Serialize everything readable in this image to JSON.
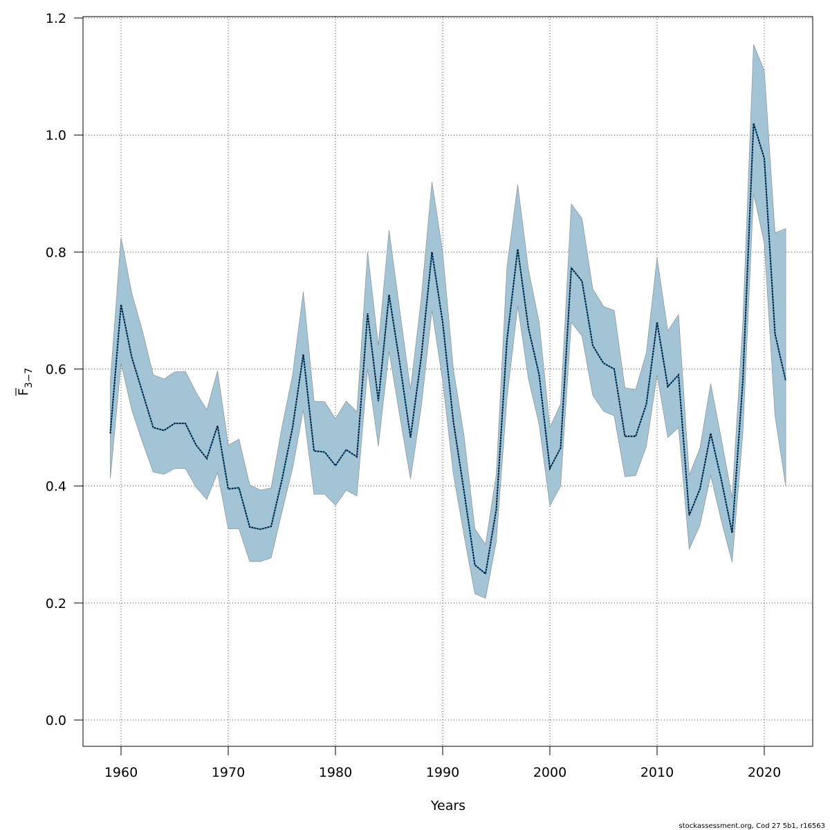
{
  "chart_data": {
    "type": "line",
    "xlabel": "Years",
    "ylabel_main": "F",
    "ylabel_sub": "3−7",
    "xlim": [
      1956.5,
      2024.5
    ],
    "ylim": [
      -0.045,
      1.2
    ],
    "xticks": [
      1960,
      1970,
      1980,
      1990,
      2000,
      2010,
      2020
    ],
    "yticks": [
      "0.0",
      "0.2",
      "0.4",
      "0.6",
      "0.8",
      "1.0",
      "1.2"
    ],
    "grid": true,
    "colors": {
      "band": "#a3c4d5",
      "band_edge": "#8a9aa3",
      "line": "#000000",
      "line_under": "#1a8fcf"
    },
    "x": [
      1959,
      1960,
      1961,
      1962,
      1963,
      1964,
      1965,
      1966,
      1967,
      1968,
      1969,
      1970,
      1971,
      1972,
      1973,
      1974,
      1975,
      1976,
      1977,
      1978,
      1979,
      1980,
      1981,
      1982,
      1983,
      1984,
      1985,
      1986,
      1987,
      1988,
      1989,
      1990,
      1991,
      1992,
      1993,
      1994,
      1995,
      1996,
      1997,
      1998,
      1999,
      2000,
      2001,
      2002,
      2003,
      2004,
      2005,
      2006,
      2007,
      2008,
      2009,
      2010,
      2011,
      2012,
      2013,
      2014,
      2015,
      2016,
      2017,
      2018,
      2019,
      2020,
      2021,
      2022
    ],
    "estimate": [
      0.49,
      0.71,
      0.62,
      0.56,
      0.5,
      0.495,
      0.507,
      0.507,
      0.47,
      0.447,
      0.503,
      0.395,
      0.397,
      0.33,
      0.326,
      0.331,
      0.41,
      0.5,
      0.625,
      0.46,
      0.458,
      0.435,
      0.462,
      0.45,
      0.695,
      0.545,
      0.727,
      0.61,
      0.483,
      0.62,
      0.8,
      0.68,
      0.51,
      0.39,
      0.265,
      0.25,
      0.36,
      0.65,
      0.805,
      0.67,
      0.59,
      0.43,
      0.465,
      0.773,
      0.75,
      0.64,
      0.61,
      0.6,
      0.485,
      0.485,
      0.54,
      0.68,
      0.57,
      0.59,
      0.35,
      0.395,
      0.49,
      0.41,
      0.32,
      0.58,
      1.02,
      0.96,
      0.66,
      0.58
    ],
    "upper": [
      0.58,
      0.825,
      0.73,
      0.665,
      0.59,
      0.583,
      0.595,
      0.596,
      0.56,
      0.53,
      0.597,
      0.47,
      0.48,
      0.402,
      0.393,
      0.397,
      0.5,
      0.59,
      0.732,
      0.545,
      0.544,
      0.515,
      0.545,
      0.527,
      0.8,
      0.64,
      0.837,
      0.7,
      0.565,
      0.72,
      0.92,
      0.8,
      0.6,
      0.485,
      0.327,
      0.3,
      0.42,
      0.775,
      0.915,
      0.77,
      0.68,
      0.5,
      0.54,
      0.882,
      0.857,
      0.737,
      0.707,
      0.7,
      0.568,
      0.565,
      0.628,
      0.79,
      0.665,
      0.693,
      0.418,
      0.465,
      0.575,
      0.48,
      0.38,
      0.68,
      1.155,
      1.11,
      0.833,
      0.84
    ],
    "lower": [
      0.413,
      0.61,
      0.53,
      0.475,
      0.424,
      0.42,
      0.43,
      0.43,
      0.398,
      0.377,
      0.423,
      0.327,
      0.327,
      0.271,
      0.271,
      0.277,
      0.355,
      0.43,
      0.53,
      0.386,
      0.386,
      0.367,
      0.393,
      0.383,
      0.6,
      0.468,
      0.63,
      0.52,
      0.412,
      0.535,
      0.7,
      0.58,
      0.42,
      0.315,
      0.216,
      0.208,
      0.305,
      0.55,
      0.708,
      0.583,
      0.505,
      0.366,
      0.4,
      0.68,
      0.656,
      0.555,
      0.528,
      0.52,
      0.416,
      0.418,
      0.468,
      0.59,
      0.483,
      0.5,
      0.292,
      0.333,
      0.418,
      0.34,
      0.27,
      0.49,
      0.9,
      0.815,
      0.52,
      0.4
    ]
  },
  "footer": "stockassessment.org, Cod 27 5b1, r16563"
}
